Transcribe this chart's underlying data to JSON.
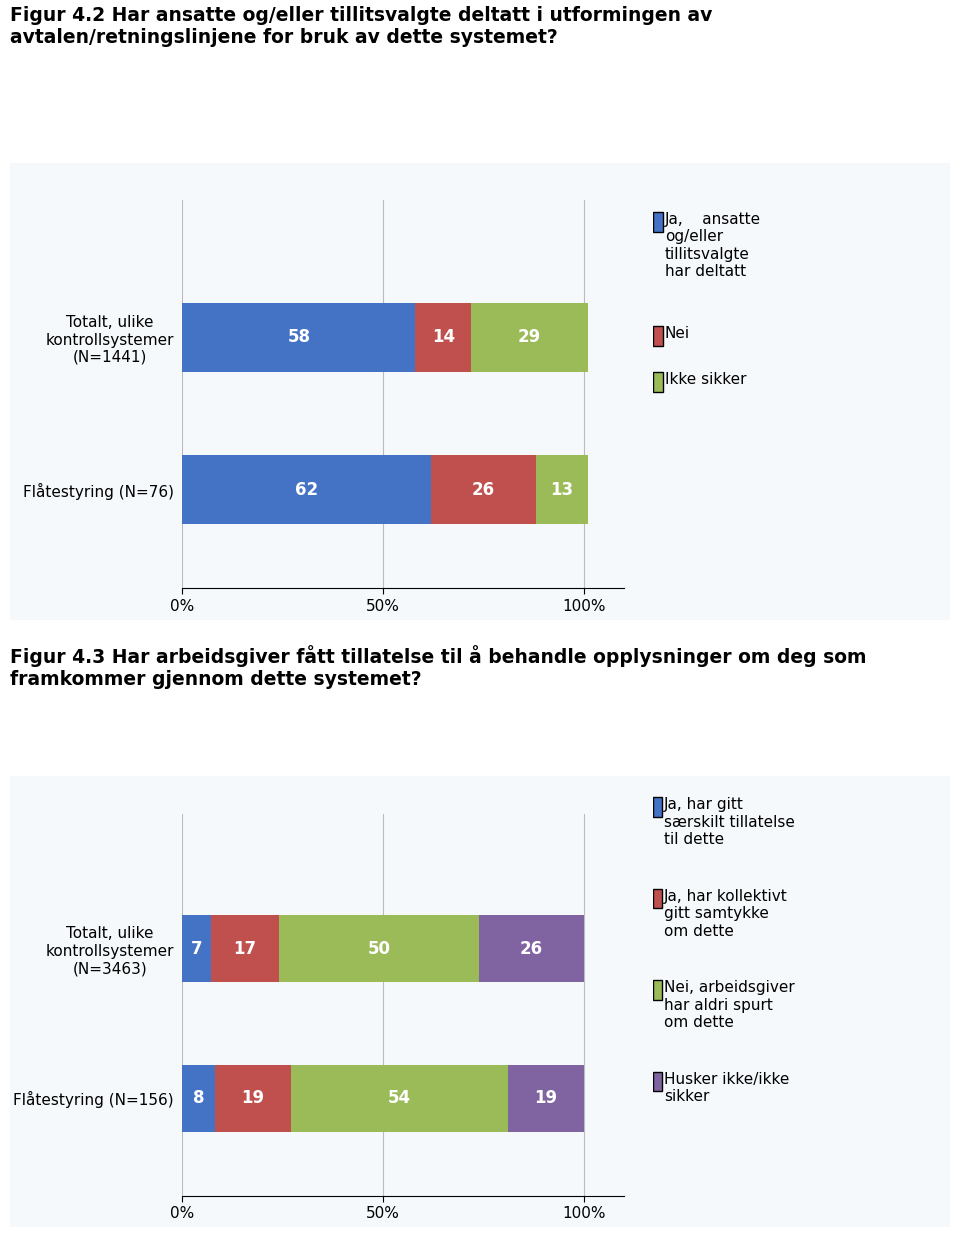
{
  "fig42": {
    "title": "Figur 4.2 Har ansatte og/eller tillitsvalgte deltatt i utformingen av\navtalen/retningslinjene for bruk av dette systemet?",
    "categories": [
      "Flåtestyring (N=76)",
      "Totalt, ulike\nkontrollsystemer\n(N=1441)"
    ],
    "series": [
      {
        "label": "Ja,    ansatte\nog/eller\ntillitsvalgte\nhar deltatt",
        "values": [
          62,
          58
        ],
        "color": "#4472C4"
      },
      {
        "label": "Nei",
        "values": [
          26,
          14
        ],
        "color": "#C0504D"
      },
      {
        "label": "Ikke sikker",
        "values": [
          13,
          29
        ],
        "color": "#9BBB59"
      }
    ],
    "legend": [
      {
        "label": "Ja,    ansatte\nog/eller\ntillitsvalgte\nhar deltatt",
        "color": "#4472C4"
      },
      {
        "label": "Nei",
        "color": "#C0504D"
      },
      {
        "label": "Ikke sikker",
        "color": "#9BBB59"
      }
    ]
  },
  "fig43": {
    "title": "Figur 4.3 Har arbeidsgiver fått tillatelse til å behandle opplysninger om deg som\nframkommer gjennom dette systemet?",
    "categories": [
      "Flåtestyring (N=156)",
      "Totalt, ulike\nkontrollsystemer\n(N=3463)"
    ],
    "series": [
      {
        "label": "Ja, har gitt\nsærskilt tillatelse\ntil dette",
        "values": [
          8,
          7
        ],
        "color": "#4472C4"
      },
      {
        "label": "Ja, har kollektivt\ngitt samtykke\nom dette",
        "values": [
          19,
          17
        ],
        "color": "#C0504D"
      },
      {
        "label": "Nei, arbeidsgiver\nhar aldri spurt\nom dette",
        "values": [
          54,
          50
        ],
        "color": "#9BBB59"
      },
      {
        "label": "Husker ikke/ikke\nsikker",
        "values": [
          19,
          26
        ],
        "color": "#8064A2"
      }
    ],
    "legend": [
      {
        "label": "Ja, har gitt\nsærskilt tillatelse\ntil dette",
        "color": "#4472C4"
      },
      {
        "label": "Ja, har kollektivt\ngitt samtykke\nom dette",
        "color": "#C0504D"
      },
      {
        "label": "Nei, arbeidsgiver\nhar aldri spurt\nom dette",
        "color": "#9BBB59"
      },
      {
        "label": "Husker ikke/ikke\nsikker",
        "color": "#8064A2"
      }
    ]
  },
  "background_color": "#FFFFFF",
  "title_fontsize": 13.5,
  "label_fontsize": 11,
  "bar_fontsize": 12,
  "legend_fontsize": 11,
  "box_edge_color": "#A8C4D8",
  "box_face_color": "#F5F9FC"
}
